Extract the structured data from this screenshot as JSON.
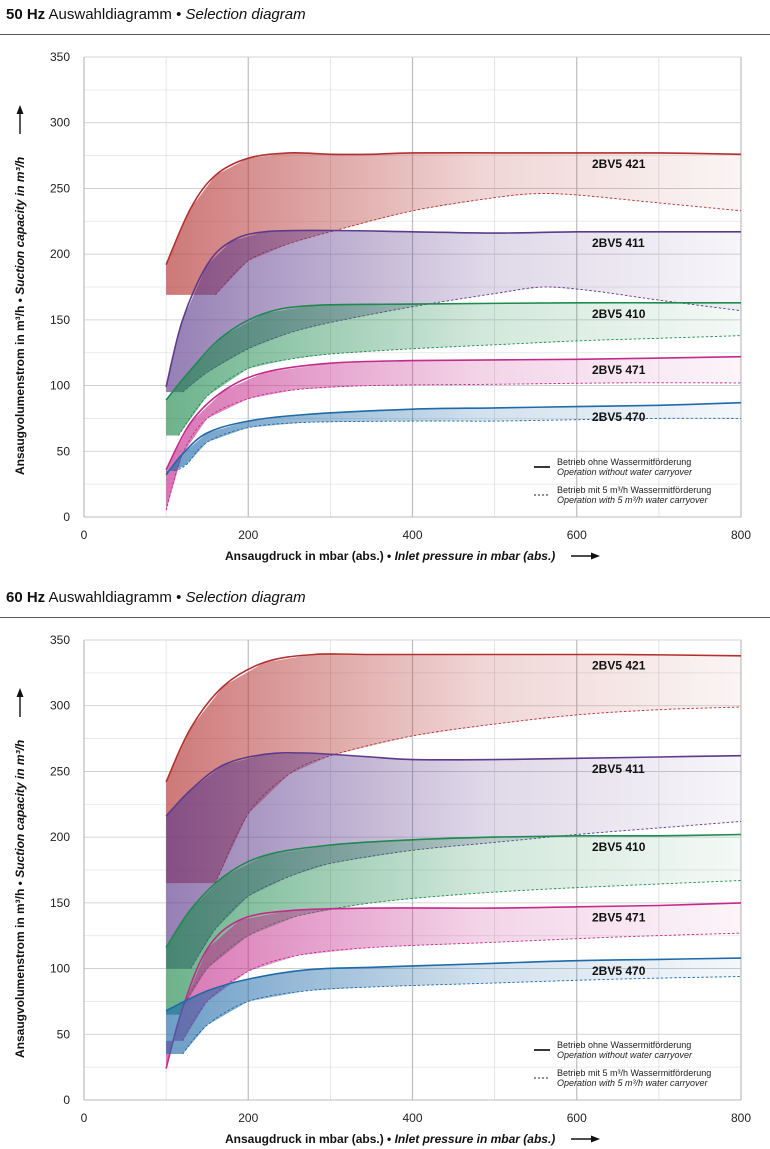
{
  "chart_data": [
    {
      "type": "area",
      "title_bold": "50 Hz",
      "title_main": "Auswahldiagramm",
      "title_sep": "•",
      "title_italic": "Selection diagram",
      "xlabel_de": "Ansaugdruck in mbar (abs.)",
      "xlabel_sep": "•",
      "xlabel_en": "Inlet pressure in mbar (abs.)",
      "ylabel_de": "Ansaugvolumenstrom in m³/h",
      "ylabel_sep": "•",
      "ylabel_en": "Suction capacity in m³/h",
      "xlim": [
        0,
        800
      ],
      "ylim": [
        0,
        350
      ],
      "xticks": [
        "0",
        "200",
        "400",
        "600",
        "800"
      ],
      "yticks": [
        "0",
        "50",
        "100",
        "150",
        "200",
        "250",
        "300",
        "350"
      ],
      "grid": true,
      "legend_position": "bottom-right",
      "legend": [
        {
          "style": "solid",
          "de": "Betrieb ohne Wassermitförderung",
          "en": "Operation without water carryover"
        },
        {
          "style": "dashed",
          "de": "Betrieb mit 5 m³/h Wassermitförderung",
          "en": "Operation with 5 m³/h water carryover"
        }
      ],
      "series": [
        {
          "name": "2BV5 421",
          "color": "#b3302f",
          "solid": [
            [
              100,
              192
            ],
            [
              130,
              235
            ],
            [
              160,
              260
            ],
            [
              200,
              273
            ],
            [
              250,
              277
            ],
            [
              300,
              276
            ],
            [
              350,
              276
            ],
            [
              400,
              277
            ],
            [
              500,
              277
            ],
            [
              600,
              277
            ],
            [
              700,
              277
            ],
            [
              800,
              276
            ]
          ],
          "dashed": [
            [
              160,
              169
            ],
            [
              200,
              195
            ],
            [
              250,
              208
            ],
            [
              300,
              217
            ],
            [
              400,
              233
            ],
            [
              500,
              243
            ],
            [
              550,
              246
            ],
            [
              600,
              245
            ],
            [
              700,
              239
            ],
            [
              800,
              233
            ]
          ]
        },
        {
          "name": "2BV5 411",
          "color": "#5d3a8c",
          "solid": [
            [
              100,
              99
            ],
            [
              120,
              150
            ],
            [
              150,
              192
            ],
            [
              180,
              210
            ],
            [
              220,
              217
            ],
            [
              300,
              218
            ],
            [
              400,
              217
            ],
            [
              500,
              216
            ],
            [
              600,
              217
            ],
            [
              700,
              217
            ],
            [
              800,
              217
            ]
          ],
          "dashed": [
            [
              120,
              95
            ],
            [
              150,
              110
            ],
            [
              200,
              128
            ],
            [
              250,
              140
            ],
            [
              300,
              148
            ],
            [
              400,
              160
            ],
            [
              500,
              170
            ],
            [
              560,
              175
            ],
            [
              620,
              172
            ],
            [
              700,
              165
            ],
            [
              800,
              157
            ]
          ]
        },
        {
          "name": "2BV5 410",
          "color": "#1d8a4e",
          "solid": [
            [
              100,
              89
            ],
            [
              130,
              112
            ],
            [
              170,
              138
            ],
            [
              220,
              155
            ],
            [
              280,
              161
            ],
            [
              400,
              162
            ],
            [
              600,
              163
            ],
            [
              700,
              163
            ],
            [
              800,
              163
            ]
          ],
          "dashed": [
            [
              115,
              62
            ],
            [
              150,
              92
            ],
            [
              200,
              113
            ],
            [
              250,
              120
            ],
            [
              300,
              124
            ],
            [
              400,
              128
            ],
            [
              500,
              131
            ],
            [
              600,
              134
            ],
            [
              700,
              136
            ],
            [
              800,
              138
            ]
          ]
        },
        {
          "name": "2BV5 471",
          "color": "#c42a8c",
          "solid": [
            [
              100,
              36
            ],
            [
              130,
              72
            ],
            [
              170,
              96
            ],
            [
              220,
              110
            ],
            [
              300,
              117
            ],
            [
              400,
              119
            ],
            [
              600,
              120
            ],
            [
              800,
              122
            ]
          ],
          "dashed": [
            [
              100,
              5
            ],
            [
              120,
              48
            ],
            [
              150,
              75
            ],
            [
              200,
              90
            ],
            [
              260,
              97
            ],
            [
              350,
              100
            ],
            [
              500,
              101
            ],
            [
              650,
              102
            ],
            [
              800,
              102
            ]
          ]
        },
        {
          "name": "2BV5 470",
          "color": "#1f6aa8",
          "solid": [
            [
              100,
              32
            ],
            [
              120,
              48
            ],
            [
              150,
              64
            ],
            [
              200,
              73
            ],
            [
              270,
              78
            ],
            [
              400,
              82
            ],
            [
              500,
              83
            ],
            [
              600,
              84
            ],
            [
              700,
              85
            ],
            [
              800,
              87
            ]
          ],
          "dashed": [
            [
              110,
              35
            ],
            [
              125,
              40
            ],
            [
              150,
              57
            ],
            [
              200,
              68
            ],
            [
              270,
              72
            ],
            [
              400,
              73
            ],
            [
              500,
              73
            ],
            [
              600,
              74
            ],
            [
              700,
              75
            ],
            [
              800,
              75
            ]
          ]
        }
      ]
    },
    {
      "type": "area",
      "title_bold": "60 Hz",
      "title_main": "Auswahldiagramm",
      "title_sep": "•",
      "title_italic": "Selection diagram",
      "xlabel_de": "Ansaugdruck in mbar (abs.)",
      "xlabel_sep": "•",
      "xlabel_en": "Inlet pressure in mbar (abs.)",
      "ylabel_de": "Ansaugvolumenstrom in m³/h",
      "ylabel_sep": "•",
      "ylabel_en": "Suction capacity in m³/h",
      "xlim": [
        0,
        800
      ],
      "ylim": [
        0,
        350
      ],
      "xticks": [
        "0",
        "200",
        "400",
        "600",
        "800"
      ],
      "yticks": [
        "0",
        "50",
        "100",
        "150",
        "200",
        "250",
        "300",
        "350"
      ],
      "grid": true,
      "legend_position": "bottom-right",
      "legend": [
        {
          "style": "solid",
          "de": "Betrieb ohne Wassermitförderung",
          "en": "Operation without water carryover"
        },
        {
          "style": "dashed",
          "de": "Betrieb mit 5 m³/h Wassermitförderung",
          "en": "Operation with 5 m³/h water carryover"
        }
      ],
      "series": [
        {
          "name": "2BV5 421",
          "color": "#b3302f",
          "solid": [
            [
              100,
              242
            ],
            [
              130,
              283
            ],
            [
              170,
              315
            ],
            [
              220,
              333
            ],
            [
              280,
              339
            ],
            [
              350,
              339
            ],
            [
              500,
              339
            ],
            [
              650,
              339
            ],
            [
              800,
              338
            ]
          ],
          "dashed": [
            [
              160,
              165
            ],
            [
              200,
              218
            ],
            [
              250,
              248
            ],
            [
              300,
              262
            ],
            [
              400,
              277
            ],
            [
              500,
              286
            ],
            [
              600,
              293
            ],
            [
              700,
              297
            ],
            [
              800,
              299
            ]
          ]
        },
        {
          "name": "2BV5 411",
          "color": "#5d3a8c",
          "solid": [
            [
              100,
              216
            ],
            [
              130,
              236
            ],
            [
              170,
              255
            ],
            [
              220,
              263
            ],
            [
              270,
              264
            ],
            [
              350,
              261
            ],
            [
              400,
              259
            ],
            [
              500,
              259
            ],
            [
              600,
              260
            ],
            [
              700,
              261
            ],
            [
              800,
              262
            ]
          ],
          "dashed": [
            [
              130,
              100
            ],
            [
              160,
              130
            ],
            [
              200,
              155
            ],
            [
              250,
              170
            ],
            [
              300,
              180
            ],
            [
              400,
              190
            ],
            [
              500,
              196
            ],
            [
              600,
              202
            ],
            [
              700,
              207
            ],
            [
              800,
              212
            ]
          ]
        },
        {
          "name": "2BV5 410",
          "color": "#1d8a4e",
          "solid": [
            [
              100,
              116
            ],
            [
              130,
              145
            ],
            [
              170,
              170
            ],
            [
              220,
              186
            ],
            [
              300,
              194
            ],
            [
              400,
              198
            ],
            [
              500,
              200
            ],
            [
              600,
              201
            ],
            [
              700,
              201
            ],
            [
              800,
              202
            ]
          ],
          "dashed": [
            [
              115,
              65
            ],
            [
              150,
              100
            ],
            [
              200,
              125
            ],
            [
              260,
              140
            ],
            [
              350,
              150
            ],
            [
              450,
              156
            ],
            [
              550,
              160
            ],
            [
              650,
              163
            ],
            [
              800,
              167
            ]
          ]
        },
        {
          "name": "2BV5 471",
          "color": "#c42a8c",
          "solid": [
            [
              100,
              24
            ],
            [
              120,
              70
            ],
            [
              150,
              115
            ],
            [
              190,
              137
            ],
            [
              250,
              144
            ],
            [
              350,
              146
            ],
            [
              500,
              146
            ],
            [
              600,
              147
            ],
            [
              700,
              148
            ],
            [
              800,
              150
            ]
          ],
          "dashed": [
            [
              120,
              45
            ],
            [
              150,
              75
            ],
            [
              200,
              98
            ],
            [
              260,
              110
            ],
            [
              350,
              116
            ],
            [
              500,
              120
            ],
            [
              650,
              124
            ],
            [
              800,
              127
            ]
          ]
        },
        {
          "name": "2BV5 470",
          "color": "#1f6aa8",
          "solid": [
            [
              100,
              68
            ],
            [
              150,
              83
            ],
            [
              200,
              92
            ],
            [
              270,
              99
            ],
            [
              350,
              101
            ],
            [
              400,
              102
            ],
            [
              500,
              104
            ],
            [
              600,
              106
            ],
            [
              700,
              107
            ],
            [
              800,
              108
            ]
          ],
          "dashed": [
            [
              120,
              35
            ],
            [
              150,
              57
            ],
            [
              200,
              75
            ],
            [
              270,
              83
            ],
            [
              350,
              86
            ],
            [
              500,
              89
            ],
            [
              650,
              92
            ],
            [
              800,
              94
            ]
          ]
        }
      ]
    }
  ]
}
